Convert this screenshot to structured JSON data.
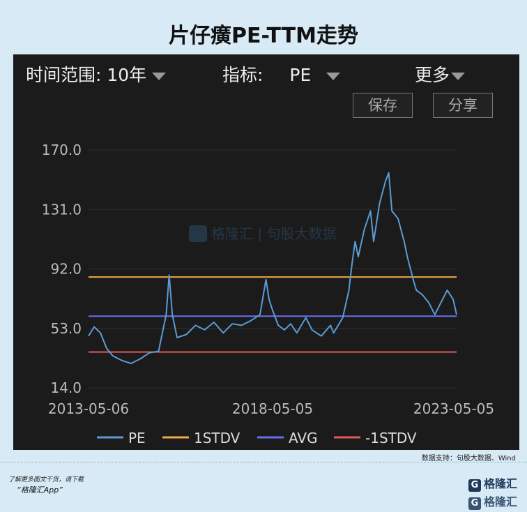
{
  "title": "片仔癀PE-TTM走势",
  "controls": {
    "time_range_label": "时间范围: 10年",
    "indicator_label": "指标:",
    "indicator_value": "PE",
    "more_label": "更多",
    "save_label": "保存",
    "share_label": "分享"
  },
  "watermark": "格隆汇 | 句股大数据",
  "chart_data": {
    "type": "line",
    "x_range": [
      "2013-05-06",
      "2023-05-05"
    ],
    "x_tick_labels": [
      "2013-05-06",
      "2018-05-05",
      "2023-05-05"
    ],
    "ylim": [
      14.0,
      170.0
    ],
    "y_ticks": [
      "170.0",
      "131.0",
      "92.0",
      "53.0",
      "14.0"
    ],
    "grid": false,
    "legend_position": "bottom",
    "series": [
      {
        "name": "PE",
        "color": "#5b9bd5",
        "points": [
          [
            "2013-05-06",
            48
          ],
          [
            "2013-07-01",
            54
          ],
          [
            "2013-09-01",
            50
          ],
          [
            "2013-11-01",
            40
          ],
          [
            "2014-01-01",
            35
          ],
          [
            "2014-04-01",
            32
          ],
          [
            "2014-07-01",
            30
          ],
          [
            "2014-10-01",
            33
          ],
          [
            "2015-01-01",
            37
          ],
          [
            "2015-04-01",
            38
          ],
          [
            "2015-06-15",
            62
          ],
          [
            "2015-07-15",
            88
          ],
          [
            "2015-08-15",
            62
          ],
          [
            "2015-10-01",
            47
          ],
          [
            "2016-01-01",
            49
          ],
          [
            "2016-04-01",
            55
          ],
          [
            "2016-07-01",
            52
          ],
          [
            "2016-10-01",
            57
          ],
          [
            "2017-01-01",
            50
          ],
          [
            "2017-04-01",
            56
          ],
          [
            "2017-07-01",
            55
          ],
          [
            "2017-10-01",
            58
          ],
          [
            "2018-01-01",
            62
          ],
          [
            "2018-03-01",
            85
          ],
          [
            "2018-04-01",
            72
          ],
          [
            "2018-05-05",
            65
          ],
          [
            "2018-07-01",
            55
          ],
          [
            "2018-09-01",
            52
          ],
          [
            "2018-11-01",
            56
          ],
          [
            "2019-01-01",
            50
          ],
          [
            "2019-04-01",
            60
          ],
          [
            "2019-06-01",
            52
          ],
          [
            "2019-09-01",
            48
          ],
          [
            "2019-12-01",
            55
          ],
          [
            "2020-01-01",
            50
          ],
          [
            "2020-04-01",
            60
          ],
          [
            "2020-06-01",
            78
          ],
          [
            "2020-07-01",
            95
          ],
          [
            "2020-08-01",
            110
          ],
          [
            "2020-09-01",
            100
          ],
          [
            "2020-11-01",
            118
          ],
          [
            "2021-01-01",
            130
          ],
          [
            "2021-02-01",
            110
          ],
          [
            "2021-04-01",
            135
          ],
          [
            "2021-06-01",
            150
          ],
          [
            "2021-07-01",
            155
          ],
          [
            "2021-08-01",
            130
          ],
          [
            "2021-10-01",
            125
          ],
          [
            "2021-12-01",
            110
          ],
          [
            "2022-01-01",
            100
          ],
          [
            "2022-03-01",
            85
          ],
          [
            "2022-04-01",
            78
          ],
          [
            "2022-06-01",
            75
          ],
          [
            "2022-08-01",
            70
          ],
          [
            "2022-10-01",
            62
          ],
          [
            "2022-12-01",
            70
          ],
          [
            "2023-02-01",
            78
          ],
          [
            "2023-04-01",
            72
          ],
          [
            "2023-05-05",
            62
          ]
        ]
      },
      {
        "name": "1STDV",
        "color": "#f0a94a",
        "value": 86.7
      },
      {
        "name": "AVG",
        "color": "#6a6ff0",
        "value": 61.0
      },
      {
        "name": "-1STDV",
        "color": "#e05a5a",
        "value": 37.5
      }
    ]
  },
  "source_note": "数据支持：句股大数据、Wind",
  "footer": {
    "promo_line1": "了解更多图文干货，请下载",
    "promo_line2": "“格隆汇App”",
    "brand": "格隆汇"
  }
}
